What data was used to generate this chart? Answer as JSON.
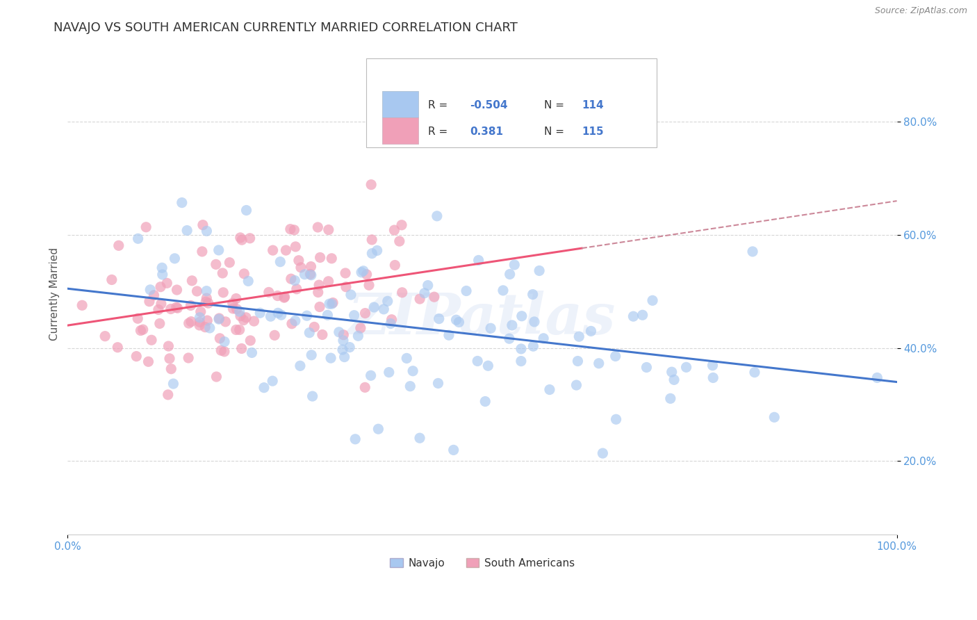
{
  "title": "NAVAJO VS SOUTH AMERICAN CURRENTLY MARRIED CORRELATION CHART",
  "source": "Source: ZipAtlas.com",
  "ylabel": "Currently Married",
  "watermark": "ZIPatlas",
  "navajo_R": -0.504,
  "navajo_N": 114,
  "south_american_R": 0.381,
  "south_american_N": 115,
  "navajo_color": "#A8C8F0",
  "south_american_color": "#F0A0B8",
  "navajo_line_color": "#4477CC",
  "south_american_line_color": "#EE5577",
  "south_american_line_dash": "#CC8899",
  "xlim": [
    0.0,
    1.0
  ],
  "ylim": [
    0.07,
    0.92
  ],
  "x_ticks": [
    0.0,
    1.0
  ],
  "x_tick_labels": [
    "0.0%",
    "100.0%"
  ],
  "y_ticks": [
    0.2,
    0.4,
    0.6,
    0.8
  ],
  "y_tick_labels": [
    "20.0%",
    "40.0%",
    "60.0%",
    "80.0%"
  ],
  "legend_navajo_label": "Navajo",
  "legend_south_american_label": "South Americans",
  "background_color": "#FFFFFF",
  "grid_color": "#CCCCCC",
  "title_color": "#333333",
  "axis_label_color": "#555555",
  "tick_color": "#5599DD",
  "navajo_seed": 42,
  "south_american_seed": 123,
  "navajo_intercept": 0.505,
  "navajo_slope": -0.165,
  "south_american_intercept": 0.44,
  "south_american_slope": 0.22
}
